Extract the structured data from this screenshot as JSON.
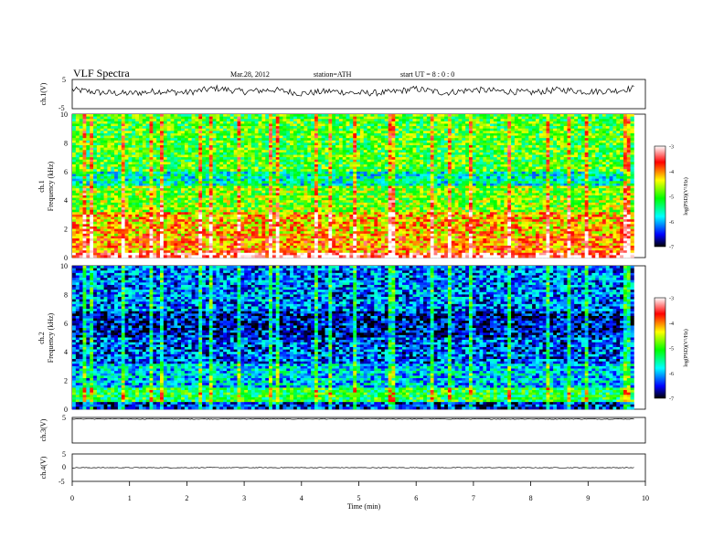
{
  "header": {
    "title": "VLF  Spectra",
    "date": "Mar.28, 2012",
    "station": "station=ATH",
    "start": "start  UT  =   8  : 0  : 0"
  },
  "chart_data": [
    {
      "type": "line",
      "id": "ch1",
      "ylabel": "ch.1(V)",
      "ylim": [
        -5,
        5
      ],
      "yticks": [
        "5",
        "-5"
      ],
      "description_values": "voltage trace fluctuating roughly between -1 and 3 V over 0-9.8 min",
      "x": [
        0,
        0.5,
        1,
        1.5,
        2,
        2.5,
        3,
        3.5,
        4,
        4.5,
        5,
        5.5,
        6,
        6.5,
        7,
        7.5,
        8,
        8.5,
        9,
        9.5,
        9.8
      ],
      "y": [
        1.5,
        0.5,
        0.2,
        1.0,
        0.5,
        2.0,
        0.8,
        1.5,
        0.2,
        1.0,
        0.3,
        0.5,
        1.8,
        0.4,
        1.5,
        1.0,
        0.5,
        1.5,
        0.8,
        1.2,
        2.0
      ]
    },
    {
      "type": "heatmap",
      "id": "ch1-spectrogram",
      "ylabel_top": "ch.1",
      "ylabel": "Frequency  (kHz)",
      "ylim": [
        0,
        10
      ],
      "yticks": [
        "0",
        "2",
        "4",
        "6",
        "8",
        "10"
      ],
      "colorbar": {
        "label": "log(PSD)(V²/Hz)",
        "ticks": [
          "-3",
          "-4",
          "-5",
          "-6",
          "-7"
        ],
        "range": [
          -7,
          -3
        ]
      },
      "bands": [
        {
          "from": 0.0,
          "to": 0.4,
          "level": -3.3
        },
        {
          "from": 0.4,
          "to": 1.5,
          "level": -4.0
        },
        {
          "from": 1.5,
          "to": 3.2,
          "level": -4.2
        },
        {
          "from": 3.2,
          "to": 5.0,
          "level": -4.8
        },
        {
          "from": 5.0,
          "to": 6.0,
          "level": -5.6
        },
        {
          "from": 6.0,
          "to": 10.0,
          "level": -5.0
        }
      ]
    },
    {
      "type": "heatmap",
      "id": "ch2-spectrogram",
      "ylabel_top": "ch.2",
      "ylabel": "Frequency  (kHz)",
      "ylim": [
        0,
        10
      ],
      "yticks": [
        "0",
        "2",
        "4",
        "6",
        "8",
        "10"
      ],
      "colorbar": {
        "label": "log(PSD)(V²/Hz)",
        "ticks": [
          "-3",
          "-4",
          "-5",
          "-6",
          "-7"
        ],
        "range": [
          -7,
          -3
        ]
      },
      "bands": [
        {
          "from": 0.0,
          "to": 0.5,
          "level": -6.5
        },
        {
          "from": 0.5,
          "to": 1.5,
          "level": -5.2
        },
        {
          "from": 1.5,
          "to": 3.2,
          "level": -5.9
        },
        {
          "from": 3.2,
          "to": 5.0,
          "level": -6.3
        },
        {
          "from": 5.0,
          "to": 6.8,
          "level": -6.6
        },
        {
          "from": 6.8,
          "to": 10.0,
          "level": -6.2
        }
      ]
    },
    {
      "type": "line",
      "id": "ch3",
      "ylabel": "ch.3(V)",
      "ylim": [
        -5,
        5
      ],
      "yticks": [
        "5"
      ],
      "x": [
        0,
        9.8
      ],
      "y": [
        4.4,
        4.4
      ]
    },
    {
      "type": "line",
      "id": "ch4",
      "ylabel": "ch.4(V)",
      "ylim": [
        -5,
        5
      ],
      "yticks": [
        "5",
        "0",
        "-5"
      ],
      "x": [
        0,
        9.8
      ],
      "y": [
        0,
        0
      ]
    }
  ],
  "xaxis": {
    "label": "Time  (min)",
    "xlim": [
      0,
      10
    ],
    "ticks": [
      "0",
      "1",
      "2",
      "3",
      "4",
      "5",
      "6",
      "7",
      "8",
      "9",
      "10"
    ],
    "data_end": 9.8
  },
  "colors": {
    "scale": [
      "#000000",
      "#0000ff",
      "#00ffff",
      "#00ff00",
      "#ffff00",
      "#ff0000",
      "#ffffff"
    ]
  }
}
